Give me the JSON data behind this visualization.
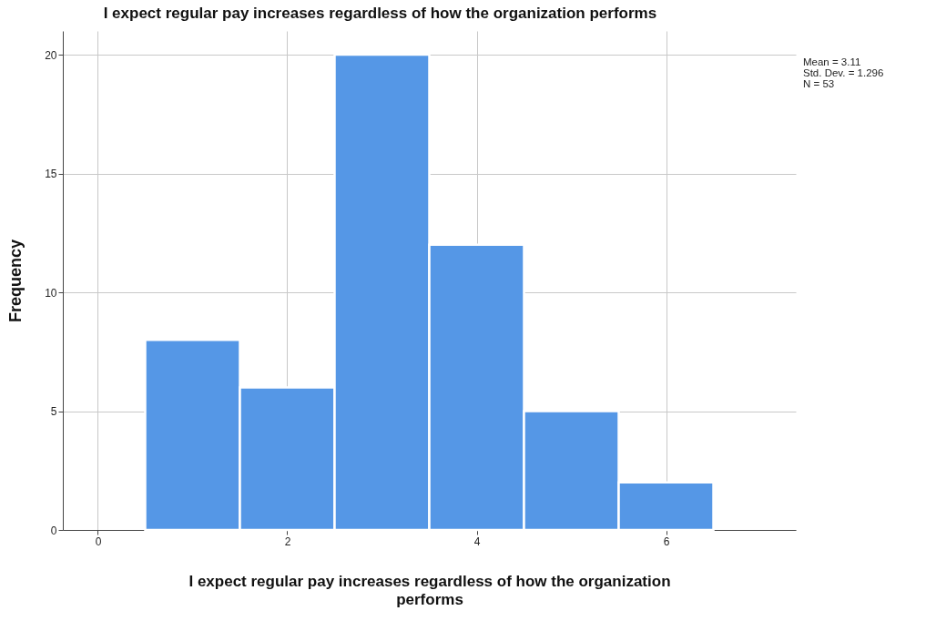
{
  "chart_data": {
    "type": "histogram",
    "title": "I expect regular pay increases regardless of how the organization performs",
    "xlabel": "I expect regular pay increases regardless of how the organization performs",
    "ylabel": "Frequency",
    "bins": [
      0.5,
      1.5,
      2.5,
      3.5,
      4.5,
      5.5,
      6.5
    ],
    "values": [
      8,
      6,
      20,
      12,
      5,
      2
    ],
    "color": "#5597e6",
    "xlim": [
      -0.37,
      7.37
    ],
    "xticks": [
      0,
      2,
      4,
      6
    ],
    "ylim": [
      0,
      21
    ],
    "yticks": [
      0,
      5,
      10,
      15,
      20
    ],
    "grid": true,
    "annotations": [
      "Mean = 3.11",
      "Std. Dev. = 1.296",
      "N = 53"
    ]
  }
}
